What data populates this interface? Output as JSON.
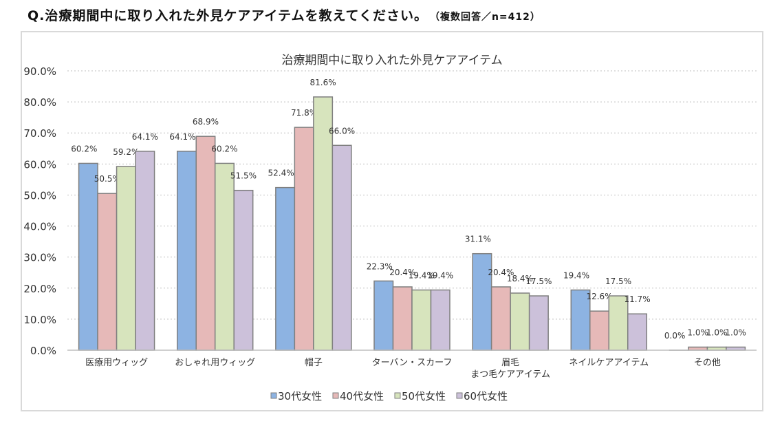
{
  "question": {
    "text": "Q.治療期間中に取り入れた外見ケアアイテムを教えてください。",
    "note": "（複数回答／n=412）"
  },
  "chart_data": {
    "type": "bar",
    "title": "治療期間中に取り入れた外見ケアアイテム",
    "categories": [
      "医療用ウィッグ",
      "おしゃれ用ウィッグ",
      "帽子",
      "ターバン・スカーフ",
      "眉毛\nまつ毛ケアアイテム",
      "ネイルケアアイテム",
      "その他"
    ],
    "series": [
      {
        "name": "30代女性",
        "color": "#8DB3E2",
        "values": [
          60.2,
          64.1,
          52.4,
          22.3,
          31.1,
          19.4,
          0.0
        ]
      },
      {
        "name": "40代女性",
        "color": "#E6B9B8",
        "values": [
          50.5,
          68.9,
          71.8,
          20.4,
          20.4,
          12.6,
          1.0
        ]
      },
      {
        "name": "50代女性",
        "color": "#D7E4BD",
        "values": [
          59.2,
          60.2,
          81.6,
          19.4,
          18.4,
          17.5,
          1.0
        ]
      },
      {
        "name": "60代女性",
        "color": "#CCC1DA",
        "values": [
          64.1,
          51.5,
          66.0,
          19.4,
          17.5,
          11.7,
          1.0
        ]
      }
    ],
    "ylim": [
      0,
      90
    ],
    "yticks": [
      "0.0%",
      "10.0%",
      "20.0%",
      "30.0%",
      "40.0%",
      "50.0%",
      "60.0%",
      "70.0%",
      "80.0%",
      "90.0%"
    ],
    "grid": true,
    "legend": "bottom"
  }
}
